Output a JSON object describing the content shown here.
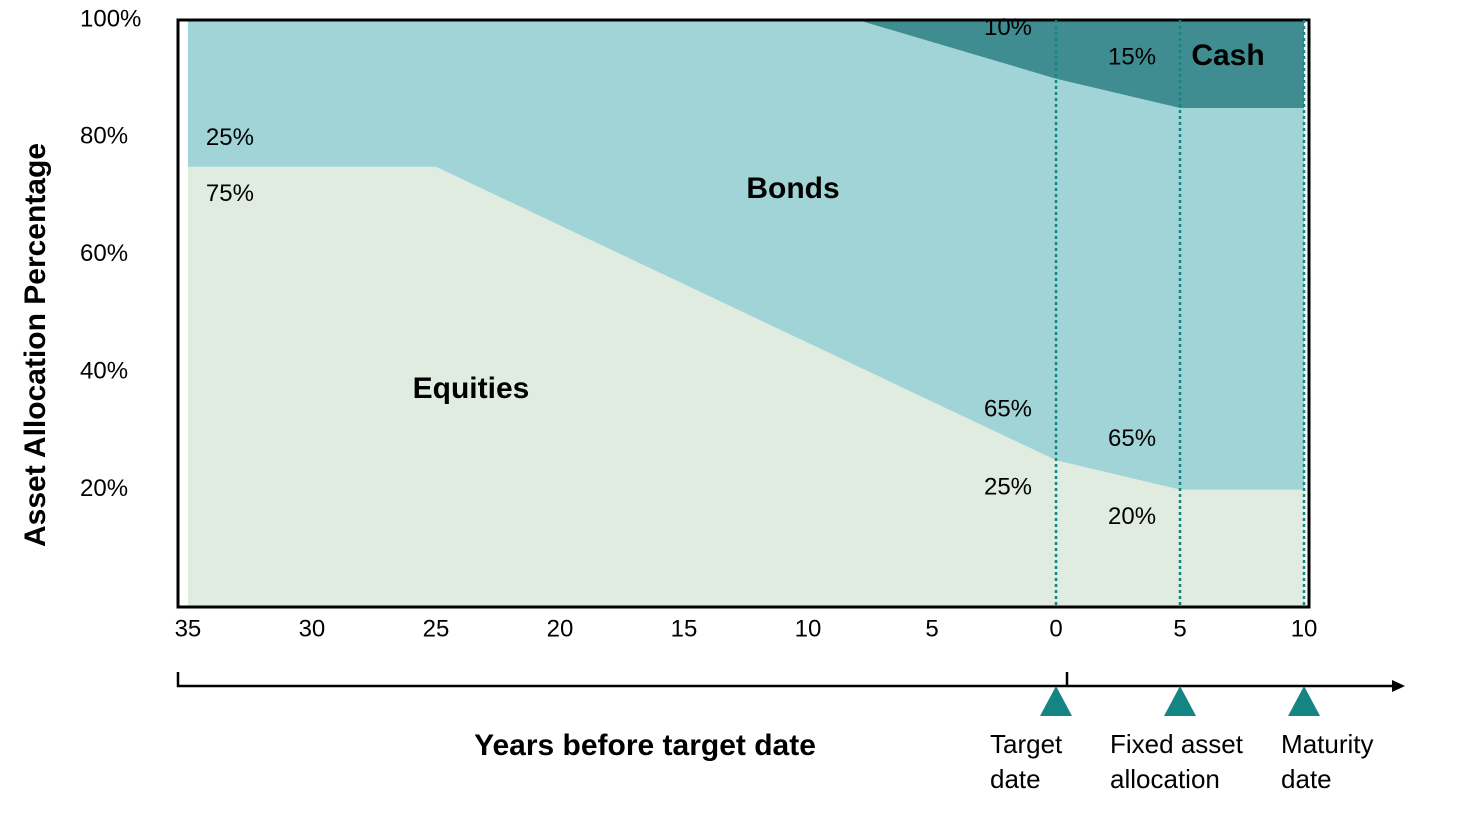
{
  "chart_data": {
    "type": "stacked-area",
    "x_label": "Years before target date",
    "y_label": "Asset Allocation Percentage",
    "x": [
      -35,
      -25,
      -12,
      -8,
      0,
      5,
      10
    ],
    "series": [
      {
        "name": "Equities",
        "color": "#e0ece0",
        "values": [
          75,
          75,
          49,
          41,
          25,
          20,
          20
        ],
        "value_labels": [
          "75%",
          null,
          null,
          null,
          "25%",
          "20%",
          null
        ]
      },
      {
        "name": "Bonds",
        "color": "#a1d4d7",
        "values": [
          25,
          25,
          51,
          59,
          65,
          65,
          65
        ],
        "value_labels": [
          "25%",
          null,
          null,
          null,
          "65%",
          "65%",
          null
        ]
      },
      {
        "name": "Cash",
        "color": "#3f8d91",
        "values": [
          0,
          0,
          0,
          0,
          10,
          15,
          15
        ],
        "value_labels": [
          null,
          null,
          null,
          null,
          "10%",
          "15%",
          null
        ]
      }
    ],
    "xlim": [
      -35.4,
      10.2
    ],
    "xticks": [
      {
        "value": -35,
        "label": "35"
      },
      {
        "value": -30,
        "label": "30"
      },
      {
        "value": -25,
        "label": "25"
      },
      {
        "value": -20,
        "label": "20"
      },
      {
        "value": -15,
        "label": "15"
      },
      {
        "value": -10,
        "label": "10"
      },
      {
        "value": -5,
        "label": "5"
      },
      0,
      5,
      10
    ],
    "ylim": [
      0,
      100
    ],
    "yticks": [
      {
        "value": 20,
        "label": "20%"
      },
      {
        "value": 40,
        "label": "40%"
      },
      {
        "value": 60,
        "label": "60%"
      },
      {
        "value": 80,
        "label": "80%"
      },
      {
        "value": 100,
        "label": "100%"
      }
    ],
    "milestones": [
      {
        "x": 0,
        "label": "Target date"
      },
      {
        "x": 5,
        "label": "Fixed asset allocation"
      },
      {
        "x": 10,
        "label": "Maturity date"
      }
    ],
    "milestone_color": "#148583"
  }
}
